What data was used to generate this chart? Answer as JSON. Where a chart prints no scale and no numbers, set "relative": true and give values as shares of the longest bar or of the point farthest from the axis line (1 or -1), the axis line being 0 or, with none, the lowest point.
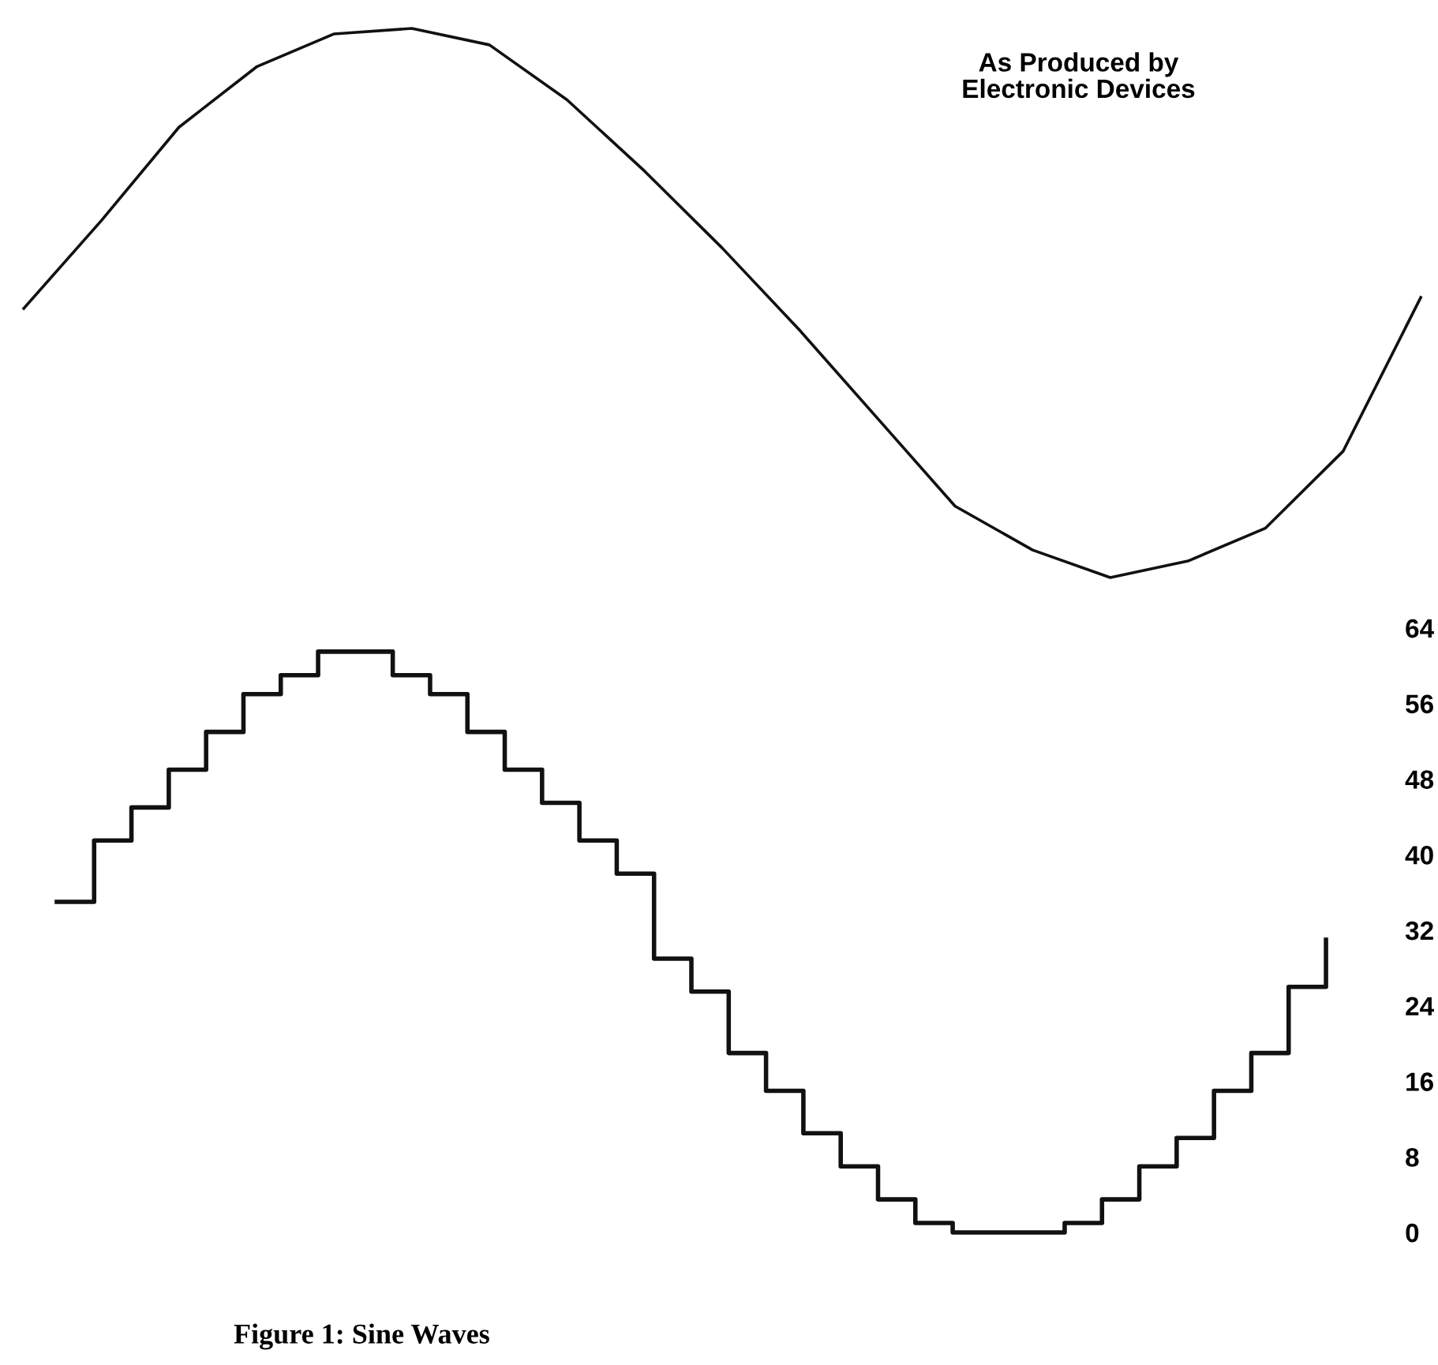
{
  "chart_data": [
    {
      "type": "line",
      "relative": true,
      "color": "#111111",
      "categories": [
        null,
        null,
        null,
        null,
        null,
        null,
        null,
        null,
        null,
        null,
        null,
        null,
        null,
        null,
        null,
        null,
        null,
        null,
        null
      ],
      "values": [
        0.49,
        0.65,
        0.82,
        0.93,
        0.99,
        1,
        0.97,
        0.87,
        0.74,
        0.6,
        0.45,
        0.29,
        0.13,
        0.05,
        0,
        0.03,
        0.09,
        0.23,
        0.51
      ],
      "annotations": [
        "As Produced by\nElectronic Devices"
      ]
    },
    {
      "type": "step",
      "color": "#111111",
      "title": "Figure 1: Sine Waves",
      "categories": [
        null,
        null,
        null,
        null,
        null,
        null,
        null,
        null,
        null,
        null,
        null,
        null,
        null,
        null,
        null,
        null,
        null,
        null,
        null,
        null,
        null,
        null,
        null,
        null,
        null,
        null,
        null,
        null,
        null,
        null,
        null,
        null,
        null,
        null,
        null
      ],
      "values": [
        35,
        41.5,
        45,
        49,
        53,
        57,
        59,
        61.5,
        61.5,
        59,
        57,
        53,
        49,
        45.5,
        41.5,
        38,
        29,
        25.5,
        19,
        15,
        10.5,
        7,
        3.5,
        1,
        0,
        0,
        0,
        1,
        3.5,
        7,
        10,
        15,
        19,
        26,
        31
      ],
      "ylim": [
        0,
        64
      ],
      "yticks": [
        0,
        8,
        16,
        24,
        32,
        40,
        48,
        56,
        64
      ],
      "tick_labels": "y"
    }
  ]
}
